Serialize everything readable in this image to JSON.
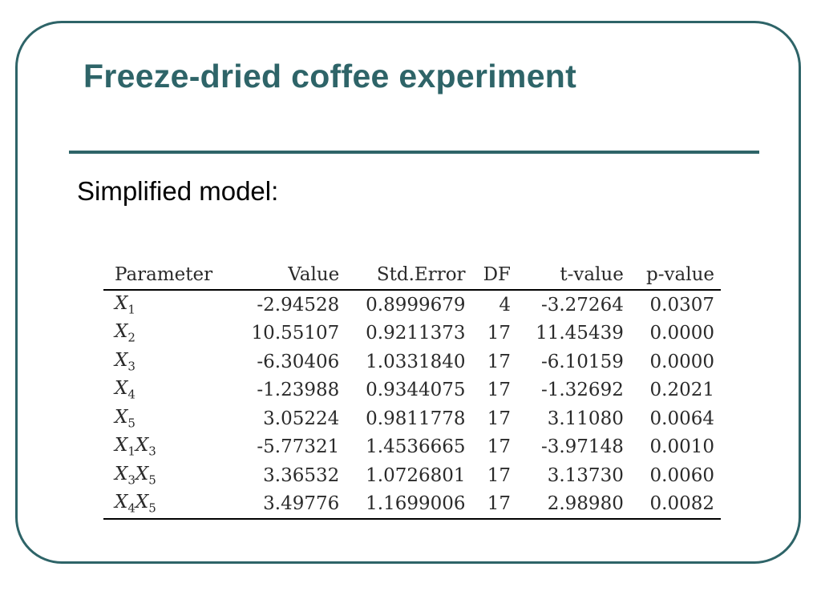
{
  "slide": {
    "title": "Freeze-dried coffee experiment",
    "subtitle": "Simplified model:"
  },
  "table": {
    "headers": [
      "Parameter",
      "Value",
      "Std.Error",
      "DF",
      "t-value",
      "p-value"
    ],
    "rows": [
      {
        "parameter": "X1",
        "value": "-2.94528",
        "std_error": "0.8999679",
        "df": "4",
        "t_value": "-3.27264",
        "p_value": "0.0307"
      },
      {
        "parameter": "X2",
        "value": "10.55107",
        "std_error": "0.9211373",
        "df": "17",
        "t_value": "11.45439",
        "p_value": "0.0000"
      },
      {
        "parameter": "X3",
        "value": "-6.30406",
        "std_error": "1.0331840",
        "df": "17",
        "t_value": "-6.10159",
        "p_value": "0.0000"
      },
      {
        "parameter": "X4",
        "value": "-1.23988",
        "std_error": "0.9344075",
        "df": "17",
        "t_value": "-1.32692",
        "p_value": "0.2021"
      },
      {
        "parameter": "X5",
        "value": "3.05224",
        "std_error": "0.9811778",
        "df": "17",
        "t_value": "3.11080",
        "p_value": "0.0064"
      },
      {
        "parameter": "X1X3",
        "value": "-5.77321",
        "std_error": "1.4536665",
        "df": "17",
        "t_value": "-3.97148",
        "p_value": "0.0010"
      },
      {
        "parameter": "X3X5",
        "value": "3.36532",
        "std_error": "1.0726801",
        "df": "17",
        "t_value": "3.13730",
        "p_value": "0.0060"
      },
      {
        "parameter": "X4X5",
        "value": "3.49776",
        "std_error": "1.1699006",
        "df": "17",
        "t_value": "2.98980",
        "p_value": "0.0082"
      }
    ]
  },
  "colors": {
    "accent": "#2e6468",
    "text": "#000000"
  }
}
